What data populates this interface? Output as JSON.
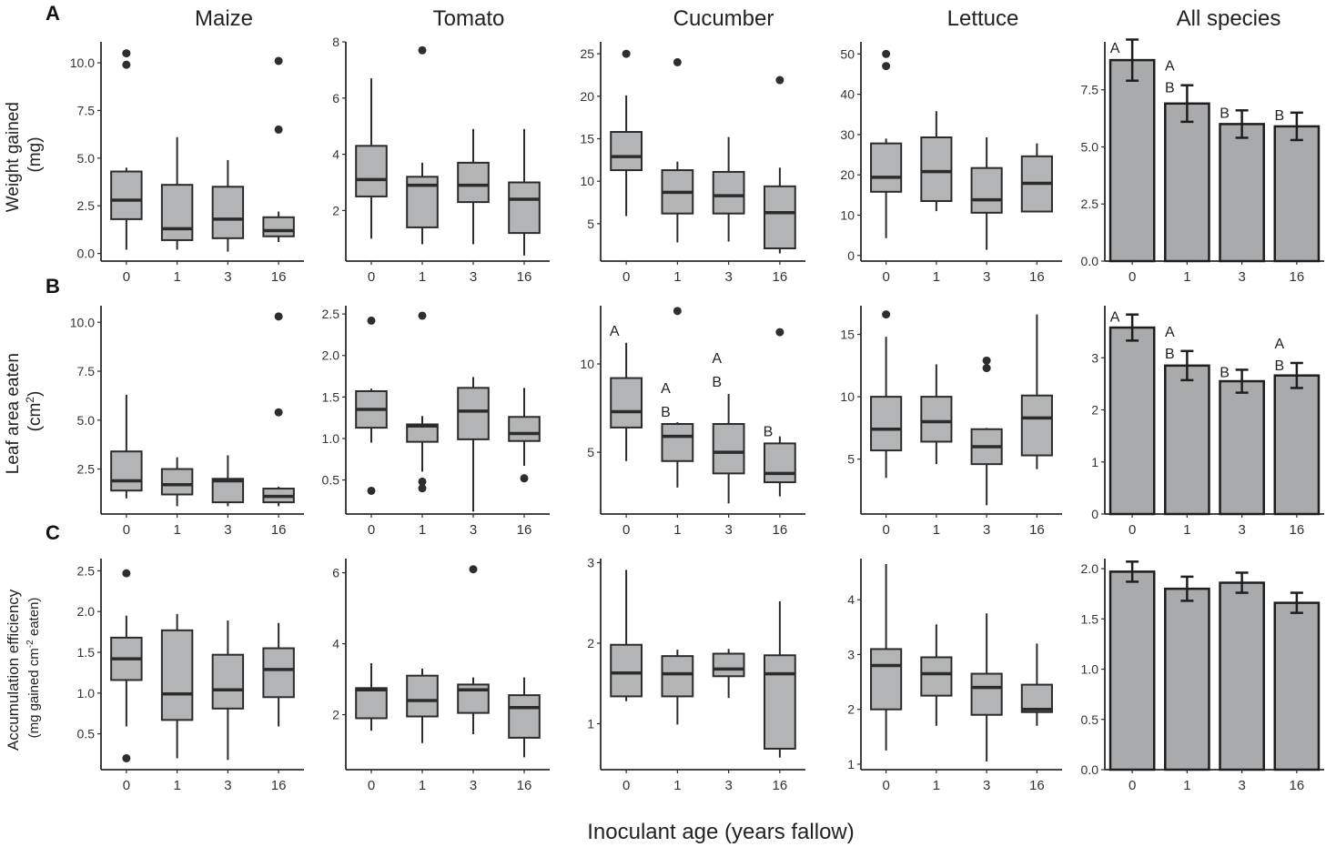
{
  "species_titles": [
    "Maize",
    "Tomato",
    "Cucumber",
    "Lettuce",
    "All species"
  ],
  "row_labels": [
    "A",
    "B",
    "C"
  ],
  "ylabels": {
    "weight": [
      "Weight gained",
      "(mg)"
    ],
    "area_main": "Leaf area eaten",
    "area_unit": "(cm",
    "area_sup": "2",
    "area_close": ")",
    "eff_line1": "Accumulation efficiency",
    "eff_a": "(mg gained cm",
    "eff_sup": "-2",
    "eff_b": " eaten)"
  },
  "xlabel": "Inoculant age (years fallow)",
  "chart_data": {
    "type": "box",
    "categories": [
      "0",
      "1",
      "3",
      "16"
    ],
    "rows": [
      {
        "metric": "Weight gained (mg)",
        "panels": [
          {
            "species": "Maize",
            "yticks": [
              0.0,
              2.5,
              5.0,
              7.5,
              10.0
            ],
            "ylim": [
              -0.4,
              11.1
            ],
            "boxes": [
              {
                "q1": 1.8,
                "median": 2.8,
                "q3": 4.3,
                "low": 0.2,
                "high": 4.5,
                "outliers": [
                  9.9,
                  10.5
                ]
              },
              {
                "q1": 0.7,
                "median": 1.3,
                "q3": 3.6,
                "low": 0.2,
                "high": 6.1,
                "outliers": []
              },
              {
                "q1": 0.8,
                "median": 1.8,
                "q3": 3.5,
                "low": 0.1,
                "high": 4.9,
                "outliers": []
              },
              {
                "q1": 0.9,
                "median": 1.2,
                "q3": 1.9,
                "low": 0.6,
                "high": 2.2,
                "outliers": [
                  6.5,
                  10.1
                ]
              }
            ]
          },
          {
            "species": "Tomato",
            "yticks": [
              2,
              4,
              6,
              8
            ],
            "ylim": [
              0.2,
              8.0
            ],
            "boxes": [
              {
                "q1": 2.5,
                "median": 3.1,
                "q3": 4.3,
                "low": 1.0,
                "high": 6.7,
                "outliers": []
              },
              {
                "q1": 1.4,
                "median": 2.9,
                "q3": 3.2,
                "low": 0.8,
                "high": 3.7,
                "outliers": [
                  7.7
                ]
              },
              {
                "q1": 2.3,
                "median": 2.9,
                "q3": 3.7,
                "low": 0.8,
                "high": 4.9,
                "outliers": []
              },
              {
                "q1": 1.2,
                "median": 2.4,
                "q3": 3.0,
                "low": 0.4,
                "high": 4.9,
                "outliers": []
              }
            ]
          },
          {
            "species": "Cucumber",
            "yticks": [
              5,
              10,
              15,
              20,
              25
            ],
            "ylim": [
              0.6,
              26.4
            ],
            "boxes": [
              {
                "q1": 11.3,
                "median": 12.9,
                "q3": 15.8,
                "low": 5.9,
                "high": 20.1,
                "outliers": [
                  25.0
                ]
              },
              {
                "q1": 6.2,
                "median": 8.7,
                "q3": 11.3,
                "low": 2.8,
                "high": 12.3,
                "outliers": [
                  24.0
                ]
              },
              {
                "q1": 6.2,
                "median": 8.3,
                "q3": 11.1,
                "low": 2.9,
                "high": 15.2,
                "outliers": []
              },
              {
                "q1": 2.1,
                "median": 6.3,
                "q3": 9.4,
                "low": 1.5,
                "high": 11.6,
                "outliers": [
                  21.9
                ]
              }
            ]
          },
          {
            "species": "Lettuce",
            "yticks": [
              0,
              10,
              20,
              30,
              40,
              50
            ],
            "ylim": [
              -1.4,
              53.0
            ],
            "boxes": [
              {
                "q1": 15.8,
                "median": 19.4,
                "q3": 27.8,
                "low": 4.3,
                "high": 29.0,
                "outliers": [
                  47.0,
                  50.0
                ]
              },
              {
                "q1": 13.5,
                "median": 20.8,
                "q3": 29.3,
                "low": 11.0,
                "high": 35.8,
                "outliers": []
              },
              {
                "q1": 10.6,
                "median": 13.8,
                "q3": 21.7,
                "low": 1.4,
                "high": 29.3,
                "outliers": []
              },
              {
                "q1": 10.9,
                "median": 17.9,
                "q3": 24.6,
                "low": 10.9,
                "high": 27.8,
                "outliers": []
              }
            ]
          }
        ],
        "summary": {
          "yticks": [
            0.0,
            2.5,
            5.0,
            7.5
          ],
          "ylim": [
            0,
            9.6
          ],
          "means": [
            8.8,
            6.9,
            6.0,
            5.9
          ],
          "errors": [
            0.9,
            0.8,
            0.6,
            0.6
          ],
          "letters": [
            [
              "A"
            ],
            [
              "A",
              "B"
            ],
            [
              "B"
            ],
            [
              "B"
            ]
          ]
        }
      },
      {
        "metric": "Leaf area eaten (cm2)",
        "panels": [
          {
            "species": "Maize",
            "yticks": [
              2.5,
              5.0,
              7.5,
              10.0
            ],
            "ylim": [
              0.2,
              10.85
            ],
            "boxes": [
              {
                "q1": 1.4,
                "median": 1.9,
                "q3": 3.4,
                "low": 1.0,
                "high": 6.3,
                "outliers": []
              },
              {
                "q1": 1.2,
                "median": 1.7,
                "q3": 2.5,
                "low": 0.6,
                "high": 3.1,
                "outliers": []
              },
              {
                "q1": 0.8,
                "median": 1.9,
                "q3": 2.0,
                "low": 0.6,
                "high": 3.2,
                "outliers": []
              },
              {
                "q1": 0.8,
                "median": 1.1,
                "q3": 1.5,
                "low": 0.6,
                "high": 1.6,
                "outliers": [
                  5.4,
                  10.3
                ]
              }
            ]
          },
          {
            "species": "Tomato",
            "yticks": [
              0.5,
              1.0,
              1.5,
              2.0,
              2.5
            ],
            "ylim": [
              0.09,
              2.6
            ],
            "boxes": [
              {
                "q1": 1.13,
                "median": 1.35,
                "q3": 1.57,
                "low": 0.95,
                "high": 1.6,
                "outliers": [
                  0.37,
                  2.42
                ]
              },
              {
                "q1": 0.96,
                "median": 1.15,
                "q3": 1.17,
                "low": 0.6,
                "high": 1.27,
                "outliers": [
                  0.4,
                  0.48,
                  2.48
                ]
              },
              {
                "q1": 0.99,
                "median": 1.33,
                "q3": 1.61,
                "low": 0.12,
                "high": 1.74,
                "outliers": []
              },
              {
                "q1": 0.97,
                "median": 1.06,
                "q3": 1.26,
                "low": 0.67,
                "high": 1.61,
                "outliers": [
                  0.52
                ]
              }
            ]
          },
          {
            "species": "Cucumber",
            "yticks": [
              5,
              10
            ],
            "ylim": [
              1.5,
              13.3
            ],
            "boxes": [
              {
                "q1": 6.4,
                "median": 7.3,
                "q3": 9.2,
                "low": 4.5,
                "high": 11.2,
                "outliers": []
              },
              {
                "q1": 4.5,
                "median": 5.9,
                "q3": 6.6,
                "low": 3.0,
                "high": 6.7,
                "outliers": [
                  13.0
                ]
              },
              {
                "q1": 3.8,
                "median": 5.0,
                "q3": 6.6,
                "low": 2.1,
                "high": 8.3,
                "outliers": []
              },
              {
                "q1": 3.3,
                "median": 3.8,
                "q3": 5.5,
                "low": 2.5,
                "high": 5.9,
                "outliers": [
                  11.8
                ]
              }
            ],
            "letters": [
              [
                "A"
              ],
              [
                "A",
                "B"
              ],
              [
                "A",
                "B"
              ],
              [
                "B"
              ]
            ]
          },
          {
            "species": "Lettuce",
            "yticks": [
              5,
              10,
              15
            ],
            "ylim": [
              0.6,
              17.3
            ],
            "boxes": [
              {
                "q1": 5.7,
                "median": 7.4,
                "q3": 10.0,
                "low": 3.5,
                "high": 14.8,
                "outliers": [
                  16.6
                ]
              },
              {
                "q1": 6.4,
                "median": 8.0,
                "q3": 10.0,
                "low": 4.6,
                "high": 12.6,
                "outliers": []
              },
              {
                "q1": 4.6,
                "median": 6.0,
                "q3": 7.4,
                "low": 1.3,
                "high": 7.5,
                "outliers": [
                  12.3,
                  12.9
                ]
              },
              {
                "q1": 5.3,
                "median": 8.3,
                "q3": 10.1,
                "low": 4.2,
                "high": 16.6,
                "outliers": []
              }
            ]
          }
        ],
        "summary": {
          "yticks": [
            0,
            1,
            2,
            3
          ],
          "ylim": [
            0,
            4.0
          ],
          "means": [
            3.58,
            2.85,
            2.55,
            2.66
          ],
          "errors": [
            0.25,
            0.28,
            0.22,
            0.24
          ],
          "letters": [
            [
              "A"
            ],
            [
              "A",
              "B"
            ],
            [
              "B"
            ],
            [
              "A",
              "B"
            ]
          ]
        }
      },
      {
        "metric": "Accumulation efficiency (mg gained cm-2 eaten)",
        "panels": [
          {
            "species": "Maize",
            "yticks": [
              0.5,
              1.0,
              1.5,
              2.0,
              2.5
            ],
            "ylim": [
              0.06,
              2.65
            ],
            "boxes": [
              {
                "q1": 1.16,
                "median": 1.42,
                "q3": 1.68,
                "low": 0.59,
                "high": 1.95,
                "outliers": [
                  0.2,
                  2.47
                ]
              },
              {
                "q1": 0.67,
                "median": 0.99,
                "q3": 1.77,
                "low": 0.2,
                "high": 1.97,
                "outliers": []
              },
              {
                "q1": 0.81,
                "median": 1.04,
                "q3": 1.47,
                "low": 0.18,
                "high": 1.89,
                "outliers": []
              },
              {
                "q1": 0.95,
                "median": 1.29,
                "q3": 1.55,
                "low": 0.59,
                "high": 1.86,
                "outliers": []
              }
            ]
          },
          {
            "species": "Tomato",
            "yticks": [
              2,
              4,
              6
            ],
            "ylim": [
              0.45,
              6.4
            ],
            "boxes": [
              {
                "q1": 1.9,
                "median": 2.7,
                "q3": 2.75,
                "low": 1.55,
                "high": 3.45,
                "outliers": []
              },
              {
                "q1": 1.95,
                "median": 2.4,
                "q3": 3.1,
                "low": 1.2,
                "high": 3.3,
                "outliers": []
              },
              {
                "q1": 2.05,
                "median": 2.7,
                "q3": 2.85,
                "low": 1.45,
                "high": 3.05,
                "outliers": [
                  6.1
                ]
              },
              {
                "q1": 1.35,
                "median": 2.2,
                "q3": 2.55,
                "low": 0.8,
                "high": 3.05,
                "outliers": []
              }
            ]
          },
          {
            "species": "Cucumber",
            "yticks": [
              1,
              2,
              3
            ],
            "ylim": [
              0.43,
              3.05
            ],
            "boxes": [
              {
                "q1": 1.34,
                "median": 1.63,
                "q3": 1.98,
                "low": 1.28,
                "high": 2.91,
                "outliers": []
              },
              {
                "q1": 1.34,
                "median": 1.62,
                "q3": 1.84,
                "low": 0.99,
                "high": 1.92,
                "outliers": []
              },
              {
                "q1": 1.59,
                "median": 1.68,
                "q3": 1.87,
                "low": 1.32,
                "high": 1.93,
                "outliers": []
              },
              {
                "q1": 0.69,
                "median": 1.62,
                "q3": 1.85,
                "low": 0.58,
                "high": 2.52,
                "outliers": []
              }
            ]
          },
          {
            "species": "Lettuce",
            "yticks": [
              1,
              2,
              3,
              4
            ],
            "ylim": [
              0.9,
              4.75
            ],
            "boxes": [
              {
                "q1": 2.0,
                "median": 2.8,
                "q3": 3.1,
                "low": 1.25,
                "high": 4.65,
                "outliers": []
              },
              {
                "q1": 2.25,
                "median": 2.65,
                "q3": 2.95,
                "low": 1.7,
                "high": 3.55,
                "outliers": []
              },
              {
                "q1": 1.9,
                "median": 2.4,
                "q3": 2.65,
                "low": 1.05,
                "high": 3.75,
                "outliers": []
              },
              {
                "q1": 1.95,
                "median": 2.0,
                "q3": 2.45,
                "low": 1.7,
                "high": 3.2,
                "outliers": []
              }
            ]
          }
        ],
        "summary": {
          "yticks": [
            0.0,
            0.5,
            1.0,
            1.5,
            2.0
          ],
          "ylim": [
            0,
            2.1
          ],
          "means": [
            1.97,
            1.8,
            1.86,
            1.66
          ],
          "errors": [
            0.1,
            0.12,
            0.1,
            0.1
          ],
          "letters": []
        }
      }
    ]
  },
  "colors": {
    "box_fill": "#b3b4b5",
    "bar_fill": "#a9aaab",
    "stroke": "#2b2b2b",
    "text": "#222222"
  }
}
